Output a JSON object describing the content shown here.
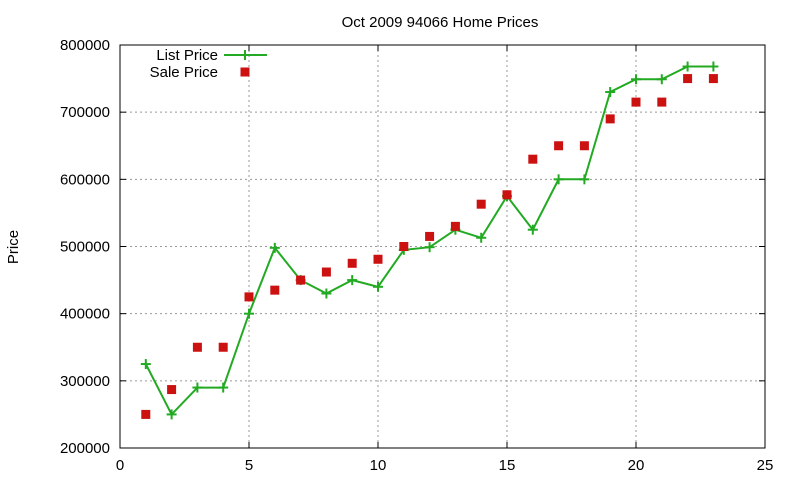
{
  "chart_data": {
    "type": "line",
    "title": "Oct 2009 94066 Home Prices",
    "xlabel": "",
    "ylabel": "Price",
    "xlim": [
      0,
      25
    ],
    "ylim": [
      200000,
      800000
    ],
    "x_ticks": [
      0,
      5,
      10,
      15,
      20,
      25
    ],
    "y_ticks": [
      200000,
      300000,
      400000,
      500000,
      600000,
      700000,
      800000
    ],
    "grid": true,
    "legend_position": "top-left",
    "series": [
      {
        "name": "List Price",
        "type": "line",
        "marker": "plus",
        "color": "#22aa22",
        "points": [
          [
            1,
            325000
          ],
          [
            2,
            250000
          ],
          [
            3,
            290000
          ],
          [
            4,
            290000
          ],
          [
            5,
            400000
          ],
          [
            6,
            498000
          ],
          [
            7,
            450000
          ],
          [
            8,
            430000
          ],
          [
            9,
            450000
          ],
          [
            10,
            440000
          ],
          [
            11,
            495000
          ],
          [
            12,
            499000
          ],
          [
            13,
            525000
          ],
          [
            14,
            513000
          ],
          [
            15,
            575000
          ],
          [
            16,
            525000
          ],
          [
            17,
            600000
          ],
          [
            18,
            600000
          ],
          [
            19,
            730000
          ],
          [
            20,
            749000
          ],
          [
            21,
            749000
          ],
          [
            22,
            768000
          ],
          [
            23,
            768000
          ]
        ]
      },
      {
        "name": "Sale Price",
        "type": "scatter",
        "marker": "square",
        "color": "#cc1111",
        "points": [
          [
            1,
            250000
          ],
          [
            2,
            287000
          ],
          [
            3,
            350000
          ],
          [
            4,
            350000
          ],
          [
            5,
            425000
          ],
          [
            6,
            435000
          ],
          [
            7,
            450000
          ],
          [
            8,
            462000
          ],
          [
            9,
            475000
          ],
          [
            10,
            481000
          ],
          [
            11,
            500000
          ],
          [
            12,
            515000
          ],
          [
            13,
            530000
          ],
          [
            14,
            563000
          ],
          [
            15,
            577000
          ],
          [
            16,
            630000
          ],
          [
            17,
            650000
          ],
          [
            18,
            650000
          ],
          [
            19,
            690000
          ],
          [
            20,
            715000
          ],
          [
            21,
            715000
          ],
          [
            22,
            750000
          ],
          [
            23,
            750000
          ]
        ]
      }
    ]
  }
}
